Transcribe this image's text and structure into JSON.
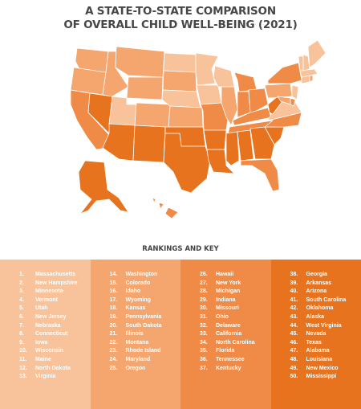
{
  "title_line1": "A STATE-TO-STATE COMPARISON",
  "title_line2": "OF OVERALL CHILD WELL-BEING (2021)",
  "key_title": "RANKINGS AND KEY",
  "colors": {
    "band1": "#f8c29a",
    "band2": "#f4a66e",
    "band3": "#ef8a47",
    "band4": "#e8731f",
    "border": "#ffffff"
  },
  "rankings": [
    {
      "rank": "1.",
      "state": "Massachusetts"
    },
    {
      "rank": "2.",
      "state": "New Hampshire"
    },
    {
      "rank": "3.",
      "state": "Minnesota"
    },
    {
      "rank": "4.",
      "state": "Vermont"
    },
    {
      "rank": "5.",
      "state": "Utah"
    },
    {
      "rank": "6.",
      "state": "New Jersey"
    },
    {
      "rank": "7.",
      "state": "Nebraska"
    },
    {
      "rank": "8.",
      "state": "Connecticut"
    },
    {
      "rank": "9.",
      "state": "Iowa"
    },
    {
      "rank": "10.",
      "state": "Wisconsin"
    },
    {
      "rank": "11.",
      "state": "Maine"
    },
    {
      "rank": "12.",
      "state": "North Dakota"
    },
    {
      "rank": "13.",
      "state": "Virginia"
    },
    {
      "rank": "14.",
      "state": "Washington"
    },
    {
      "rank": "15.",
      "state": "Colorado"
    },
    {
      "rank": "16.",
      "state": "Idaho"
    },
    {
      "rank": "17.",
      "state": "Wyoming"
    },
    {
      "rank": "18.",
      "state": "Kansas"
    },
    {
      "rank": "19.",
      "state": "Pennsylvania"
    },
    {
      "rank": "20.",
      "state": "South Dakota"
    },
    {
      "rank": "21.",
      "state": "Illinois"
    },
    {
      "rank": "22.",
      "state": "Montana"
    },
    {
      "rank": "23.",
      "state": "Rhode Island"
    },
    {
      "rank": "24.",
      "state": "Maryland"
    },
    {
      "rank": "25.",
      "state": "Oregon"
    },
    {
      "rank": "26.",
      "state": "Hawaii"
    },
    {
      "rank": "27.",
      "state": "New York"
    },
    {
      "rank": "28.",
      "state": "Michigan"
    },
    {
      "rank": "29.",
      "state": "Indiana"
    },
    {
      "rank": "30.",
      "state": "Missouri"
    },
    {
      "rank": "31.",
      "state": "Ohio"
    },
    {
      "rank": "32.",
      "state": "Delaware"
    },
    {
      "rank": "33.",
      "state": "California"
    },
    {
      "rank": "34.",
      "state": "North Carolina"
    },
    {
      "rank": "35.",
      "state": "Florida"
    },
    {
      "rank": "36.",
      "state": "Tennessee"
    },
    {
      "rank": "37.",
      "state": "Kentucky"
    },
    {
      "rank": "38.",
      "state": "Georgia"
    },
    {
      "rank": "39.",
      "state": "Arkansas"
    },
    {
      "rank": "40.",
      "state": "Arizona"
    },
    {
      "rank": "41.",
      "state": "South Carolina"
    },
    {
      "rank": "42.",
      "state": "Oklahoma"
    },
    {
      "rank": "43.",
      "state": "Alaska"
    },
    {
      "rank": "44.",
      "state": "West Virginia"
    },
    {
      "rank": "45.",
      "state": "Nevada"
    },
    {
      "rank": "46.",
      "state": "Texas"
    },
    {
      "rank": "47.",
      "state": "Alabama"
    },
    {
      "rank": "48.",
      "state": "Louisiana"
    },
    {
      "rank": "49.",
      "state": "New Mexico"
    },
    {
      "rank": "50.",
      "state": "Mississippi"
    }
  ],
  "bands": [
    {
      "start": 0,
      "end": 13
    },
    {
      "start": 13,
      "end": 25
    },
    {
      "start": 25,
      "end": 37
    },
    {
      "start": 37,
      "end": 50
    }
  ]
}
